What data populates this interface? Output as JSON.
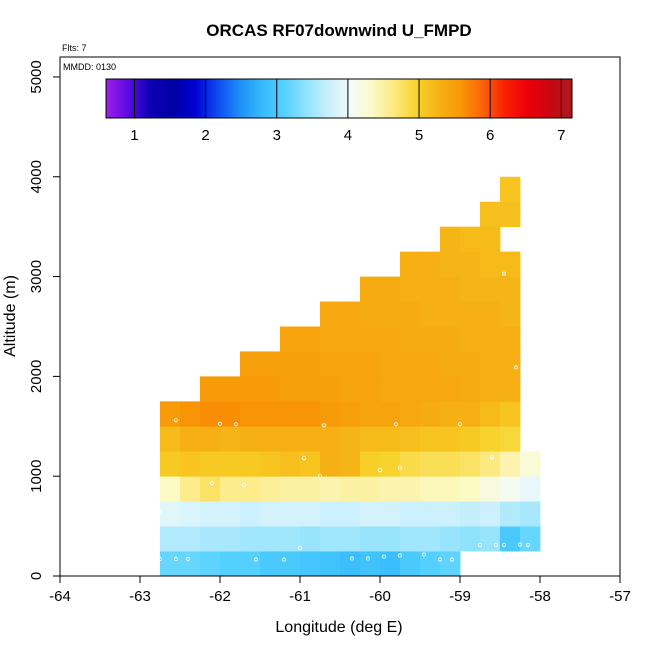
{
  "chart_data": {
    "type": "heatmap",
    "title": "ORCAS RF07downwind U_FMPD",
    "annotations": {
      "flights": "Flts: 7",
      "date": "MMDD: 0130"
    },
    "xlabel": "Longitude (deg E)",
    "ylabel": "Altitude (m)",
    "xlim": [
      -64,
      -57
    ],
    "ylim": [
      0,
      5200
    ],
    "x_ticks": [
      -64,
      -63,
      -62,
      -61,
      -60,
      -59,
      -58,
      -57
    ],
    "y_ticks": [
      0,
      1000,
      2000,
      3000,
      4000,
      5000
    ],
    "colorbar": {
      "range": [
        0.6,
        7.15
      ],
      "ticks": [
        1,
        2,
        3,
        4,
        5,
        6,
        7
      ]
    },
    "cell_width_deg": 0.25,
    "cell_height_m": 250,
    "grid_left": -62.75,
    "rows": [
      {
        "altitude_bottom": 0,
        "values": [
          3.2,
          3.2,
          3.15,
          3.1,
          3.1,
          3.0,
          3.0,
          2.95,
          2.9,
          2.85,
          2.9,
          2.85,
          3.0,
          3.1,
          3.15
        ]
      },
      {
        "altitude_bottom": 250,
        "values": [
          3.6,
          3.6,
          3.55,
          3.55,
          3.5,
          3.5,
          3.5,
          3.45,
          3.5,
          3.5,
          3.45,
          3.45,
          3.5,
          3.5,
          3.45,
          3.4,
          3.45,
          3.0,
          3.2
        ]
      },
      {
        "altitude_bottom": 500,
        "values": [
          3.9,
          3.85,
          3.8,
          3.8,
          3.75,
          3.8,
          3.8,
          3.8,
          3.75,
          3.75,
          3.8,
          3.8,
          3.75,
          3.75,
          3.75,
          3.7,
          3.75,
          3.6,
          3.55
        ]
      },
      {
        "altitude_bottom": 750,
        "values": [
          4.35,
          4.6,
          4.75,
          4.6,
          4.6,
          4.55,
          4.5,
          4.5,
          4.45,
          4.5,
          4.5,
          4.45,
          4.45,
          4.4,
          4.4,
          4.35,
          4.2,
          4.1,
          3.95
        ]
      },
      {
        "altitude_bottom": 1000,
        "values": [
          5.05,
          5.1,
          5.05,
          5.05,
          5.05,
          5.1,
          5.15,
          5.1,
          5.3,
          5.25,
          5.0,
          4.95,
          4.85,
          4.8,
          4.8,
          4.75,
          4.65,
          4.45,
          4.25
        ]
      },
      {
        "altitude_bottom": 1250,
        "values": [
          5.2,
          5.3,
          5.3,
          5.25,
          5.3,
          5.3,
          5.3,
          5.3,
          5.3,
          5.25,
          5.2,
          5.2,
          5.15,
          5.1,
          5.1,
          5.05,
          4.95,
          4.9
        ]
      },
      {
        "altitude_bottom": 1500,
        "values": [
          5.55,
          5.6,
          5.65,
          5.65,
          5.6,
          5.6,
          5.6,
          5.6,
          5.55,
          5.5,
          5.45,
          5.45,
          5.4,
          5.35,
          5.3,
          5.3,
          5.2,
          5.1
        ]
      },
      {
        "altitude_bottom": 1750,
        "values": [
          null,
          null,
          5.55,
          5.55,
          5.55,
          5.55,
          5.5,
          5.5,
          5.5,
          5.45,
          5.45,
          5.4,
          5.4,
          5.4,
          5.4,
          5.35,
          5.3,
          5.3
        ]
      },
      {
        "altitude_bottom": 2000,
        "values": [
          null,
          null,
          null,
          null,
          5.5,
          5.5,
          5.5,
          5.5,
          5.45,
          5.45,
          5.45,
          5.4,
          5.4,
          5.4,
          5.35,
          5.35,
          5.3,
          5.3
        ]
      },
      {
        "altitude_bottom": 2250,
        "values": [
          null,
          null,
          null,
          null,
          null,
          null,
          5.45,
          5.45,
          5.4,
          5.4,
          5.4,
          5.4,
          5.35,
          5.35,
          5.35,
          5.3,
          5.3,
          5.3
        ]
      },
      {
        "altitude_bottom": 2500,
        "values": [
          null,
          null,
          null,
          null,
          null,
          null,
          null,
          null,
          5.4,
          5.4,
          5.35,
          5.35,
          5.35,
          5.3,
          5.3,
          5.3,
          5.3,
          5.25
        ]
      },
      {
        "altitude_bottom": 2750,
        "values": [
          null,
          null,
          null,
          null,
          null,
          null,
          null,
          null,
          null,
          null,
          5.35,
          5.35,
          5.3,
          5.3,
          5.3,
          5.25,
          5.25,
          5.25
        ]
      },
      {
        "altitude_bottom": 3000,
        "values": [
          null,
          null,
          null,
          null,
          null,
          null,
          null,
          null,
          null,
          null,
          null,
          null,
          5.3,
          5.3,
          5.25,
          5.25,
          5.2,
          5.2
        ]
      },
      {
        "altitude_bottom": 3250,
        "values": [
          null,
          null,
          null,
          null,
          null,
          null,
          null,
          null,
          null,
          null,
          null,
          null,
          null,
          null,
          5.25,
          5.2,
          5.2
        ]
      },
      {
        "altitude_bottom": 3500,
        "values": [
          null,
          null,
          null,
          null,
          null,
          null,
          null,
          null,
          null,
          null,
          null,
          null,
          null,
          null,
          null,
          null,
          5.15,
          5.15
        ]
      },
      {
        "altitude_bottom": 3750,
        "values": [
          null,
          null,
          null,
          null,
          null,
          null,
          null,
          null,
          null,
          null,
          null,
          null,
          null,
          null,
          null,
          null,
          null,
          5.1
        ]
      }
    ],
    "observations": [
      [
        -62.75,
        170
      ],
      [
        -62.55,
        170
      ],
      [
        -62.4,
        170
      ],
      [
        -61.55,
        165
      ],
      [
        -61.2,
        165
      ],
      [
        -61.0,
        280
      ],
      [
        -60.35,
        175
      ],
      [
        -60.15,
        175
      ],
      [
        -59.95,
        195
      ],
      [
        -59.75,
        205
      ],
      [
        -59.45,
        215
      ],
      [
        -59.25,
        165
      ],
      [
        -59.1,
        165
      ],
      [
        -58.75,
        310
      ],
      [
        -58.55,
        310
      ],
      [
        -58.45,
        310
      ],
      [
        -58.25,
        315
      ],
      [
        -58.15,
        310
      ],
      [
        -62.75,
        640
      ],
      [
        -62.1,
        930
      ],
      [
        -61.7,
        910
      ],
      [
        -60.75,
        1000
      ],
      [
        -60.0,
        1060
      ],
      [
        -59.75,
        1085
      ],
      [
        -58.6,
        1190
      ],
      [
        -60.95,
        1180
      ],
      [
        -62.55,
        1560
      ],
      [
        -62.0,
        1525
      ],
      [
        -61.8,
        1520
      ],
      [
        -60.7,
        1510
      ],
      [
        -59.8,
        1520
      ],
      [
        -59.0,
        1520
      ],
      [
        -58.3,
        2090
      ],
      [
        -58.45,
        3030
      ],
      [
        -58.65,
        3970
      ]
    ],
    "colors": {
      "stops": [
        "#9d1fe9",
        "#5b0be0",
        "#0c00b5",
        "#0000a6",
        "#0000cf",
        "#0c49ee",
        "#1d8df8",
        "#35b9fb",
        "#53d0fe",
        "#8fe2fc",
        "#c8effd",
        "#f3fbf9",
        "#fcfac7",
        "#fce97e",
        "#f7d229",
        "#f6b214",
        "#f89706",
        "#fd6208",
        "#fa1f04",
        "#ec0008",
        "#c80711",
        "#a91a20"
      ]
    }
  }
}
